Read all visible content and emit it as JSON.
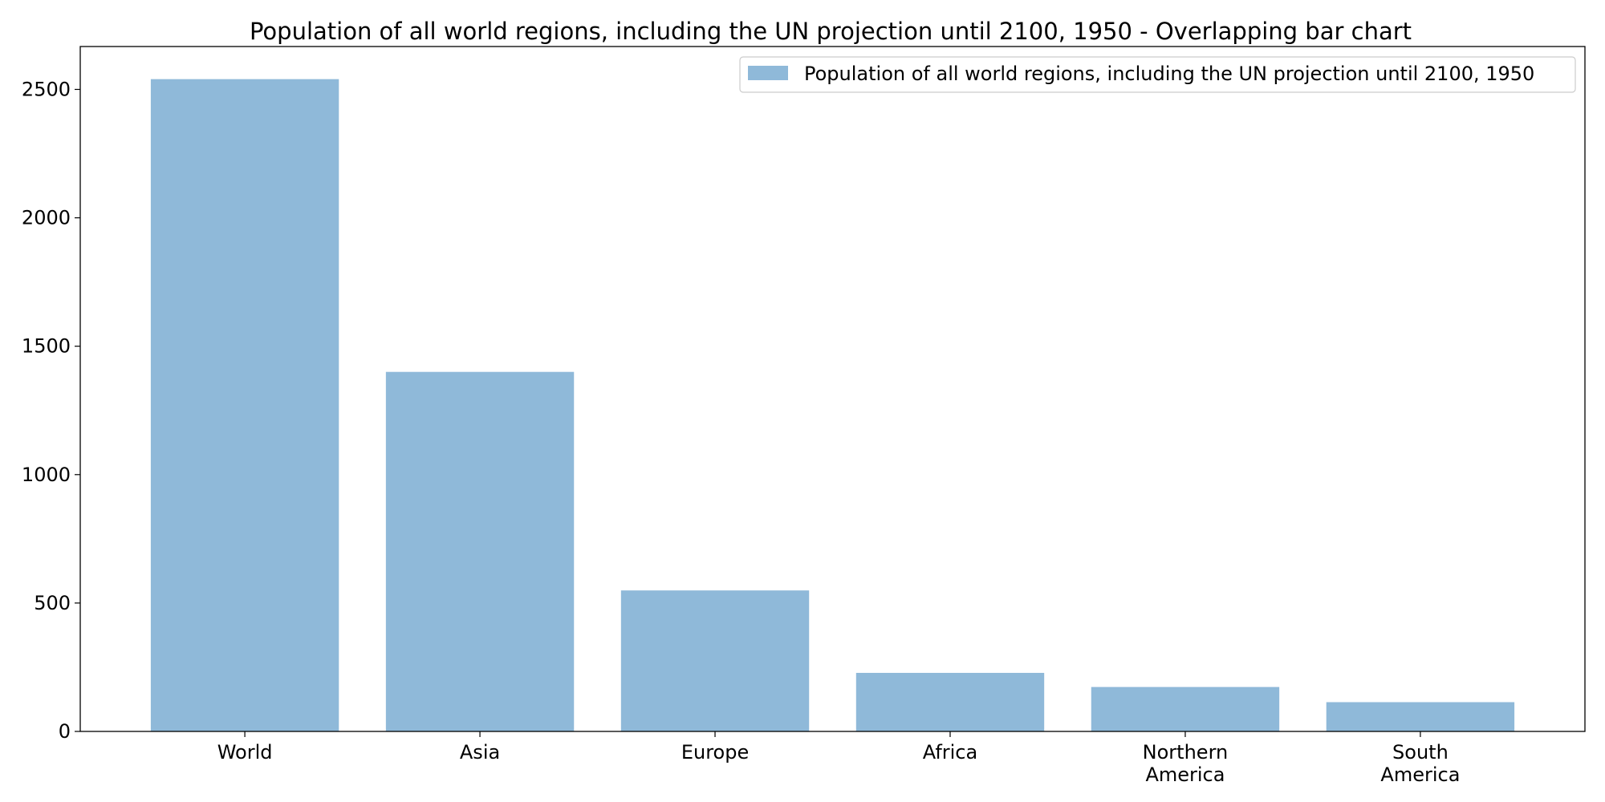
{
  "chart_data": {
    "type": "bar",
    "title": "Population of all world regions, including the UN projection until 2100, 1950 - Overlapping bar chart",
    "xlabel": "",
    "ylabel": "",
    "categories": [
      "World",
      "Asia",
      "Europe",
      "Africa",
      "Northern\nAmerica",
      "South\nAmerica"
    ],
    "series": [
      {
        "name": "Population of all world regions, including the UN projection until 2100, 1950",
        "values": [
          2540,
          1400,
          549,
          228,
          173,
          114
        ],
        "color": "#8fb9d9"
      }
    ],
    "ylim": [
      0,
      2667
    ],
    "yticks": [
      0,
      500,
      1000,
      1500,
      2000,
      2500
    ],
    "grid": false,
    "legend_position": "top-right"
  }
}
